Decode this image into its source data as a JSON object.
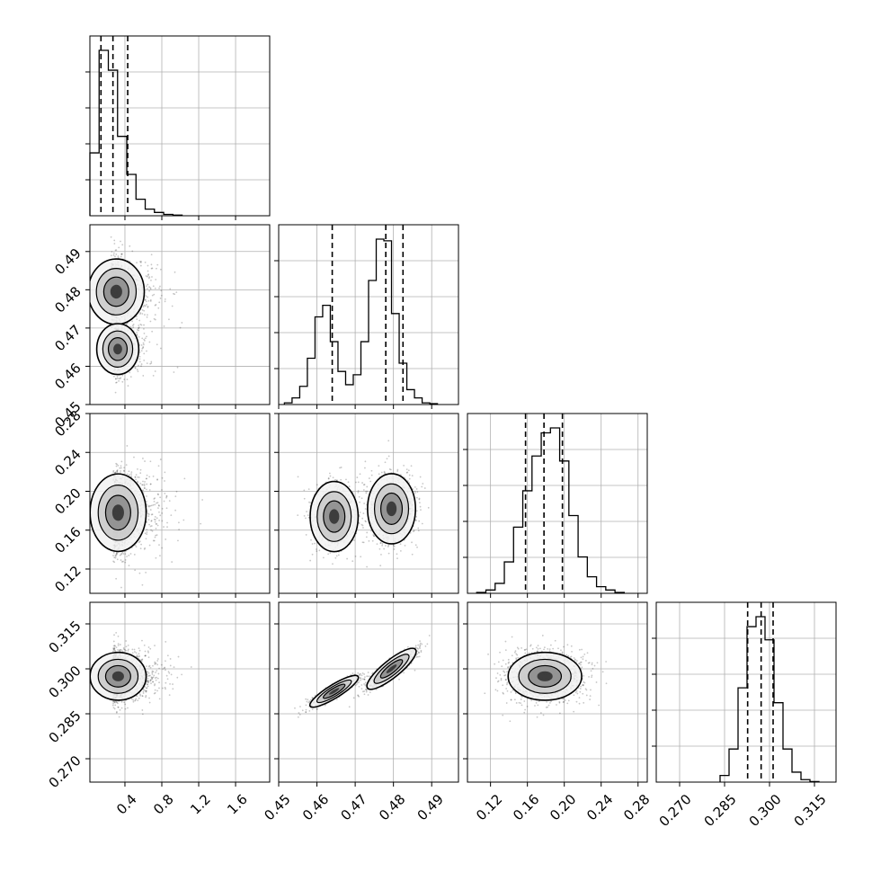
{
  "colors": {
    "ink": "#000000",
    "grid": "#b0b0b0",
    "background": "#ffffff"
  },
  "chart_data": {
    "type": "corner",
    "parameters": [
      "",
      "",
      "",
      ""
    ],
    "grid": true,
    "axes": {
      "x": [
        {
          "range": [
            0.02,
            1.97
          ],
          "ticks": [
            0.4,
            0.8,
            1.2,
            1.6
          ],
          "tick_labels": [
            "0.4",
            "0.8",
            "1.2",
            "1.6"
          ]
        },
        {
          "range": [
            0.45,
            0.497
          ],
          "ticks": [
            0.45,
            0.46,
            0.47,
            0.48,
            0.49
          ],
          "tick_labels": [
            "0.45",
            "0.46",
            "0.47",
            "0.48",
            "0.49"
          ]
        },
        {
          "range": [
            0.095,
            0.29
          ],
          "ticks": [
            0.12,
            0.16,
            0.2,
            0.24,
            0.28
          ],
          "tick_labels": [
            "0.12",
            "0.16",
            "0.20",
            "0.24",
            "0.28"
          ]
        },
        {
          "range": [
            0.2622,
            0.3222
          ],
          "ticks": [
            0.27,
            0.285,
            0.3,
            0.315
          ],
          "tick_labels": [
            "0.270",
            "0.285",
            "0.300",
            "0.315"
          ]
        }
      ],
      "y": [
        null,
        {
          "range": [
            0.45,
            0.497
          ],
          "ticks": [
            0.45,
            0.46,
            0.47,
            0.48,
            0.49
          ],
          "tick_labels": [
            "0.45",
            "0.46",
            "0.47",
            "0.48",
            "0.49"
          ]
        },
        {
          "range": [
            0.095,
            0.28
          ],
          "ticks": [
            0.12,
            0.16,
            0.2,
            0.24,
            0.28
          ],
          "tick_labels": [
            "0.12",
            "0.16",
            "0.20",
            "0.24",
            "0.28"
          ]
        },
        {
          "range": [
            0.2622,
            0.3222
          ],
          "ticks": [
            0.27,
            0.285,
            0.3,
            0.315
          ],
          "tick_labels": [
            "0.270",
            "0.285",
            "0.300",
            "0.315"
          ]
        }
      ]
    },
    "histograms": [
      {
        "bin_edges": [
          0.02,
          0.12,
          0.22,
          0.32,
          0.42,
          0.52,
          0.62,
          0.72,
          0.82,
          0.92,
          1.02
        ],
        "counts": [
          0.38,
          1.0,
          0.88,
          0.48,
          0.25,
          0.1,
          0.04,
          0.02,
          0.008,
          0.004
        ],
        "quantiles": [
          0.14,
          0.27,
          0.43
        ]
      },
      {
        "bin_edges": [
          0.4515,
          0.4535,
          0.4555,
          0.4575,
          0.4595,
          0.4615,
          0.4635,
          0.4655,
          0.4675,
          0.4695,
          0.4715,
          0.4735,
          0.4755,
          0.4775,
          0.4795,
          0.4815,
          0.4835,
          0.4855,
          0.4875,
          0.4895,
          0.4915
        ],
        "counts": [
          0.01,
          0.04,
          0.11,
          0.28,
          0.53,
          0.6,
          0.38,
          0.2,
          0.12,
          0.18,
          0.38,
          0.75,
          1.0,
          0.99,
          0.55,
          0.25,
          0.09,
          0.04,
          0.01,
          0.005
        ],
        "quantiles": [
          0.464,
          0.478,
          0.4825
        ]
      },
      {
        "bin_edges": [
          0.105,
          0.115,
          0.125,
          0.135,
          0.145,
          0.155,
          0.165,
          0.175,
          0.185,
          0.195,
          0.205,
          0.215,
          0.225,
          0.235,
          0.245,
          0.255,
          0.265
        ],
        "counts": [
          0.005,
          0.02,
          0.06,
          0.19,
          0.4,
          0.62,
          0.83,
          0.97,
          1.0,
          0.8,
          0.47,
          0.22,
          0.1,
          0.04,
          0.02,
          0.005
        ],
        "quantiles": [
          0.158,
          0.178,
          0.198
        ]
      },
      {
        "bin_edges": [
          0.2835,
          0.2865,
          0.2895,
          0.2925,
          0.2955,
          0.2985,
          0.3015,
          0.3045,
          0.3075,
          0.3105,
          0.3135,
          0.3165
        ],
        "counts": [
          0.04,
          0.2,
          0.57,
          0.94,
          1.0,
          0.86,
          0.48,
          0.2,
          0.06,
          0.015,
          0.003
        ],
        "quantiles": [
          0.2927,
          0.2972,
          0.3012
        ]
      }
    ],
    "pair_panels": [
      {
        "x_param": 0,
        "y_param": 1,
        "density_peaks": [
          {
            "x": 0.25,
            "y": 0.4795,
            "sx": 0.16,
            "sy": 0.0045,
            "w": 0.6
          },
          {
            "x": 0.28,
            "y": 0.4645,
            "sx": 0.12,
            "sy": 0.0035,
            "w": 0.4
          }
        ]
      },
      {
        "x_param": 0,
        "y_param": 2,
        "density_peaks": [
          {
            "x": 0.27,
            "y": 0.178,
            "sx": 0.16,
            "sy": 0.021,
            "w": 1.0
          }
        ]
      },
      {
        "x_param": 0,
        "y_param": 3,
        "density_peaks": [
          {
            "x": 0.27,
            "y": 0.2975,
            "sx": 0.16,
            "sy": 0.0042,
            "w": 1.0
          }
        ]
      },
      {
        "x_param": 1,
        "y_param": 2,
        "density_peaks": [
          {
            "x": 0.4645,
            "y": 0.174,
            "sx": 0.0033,
            "sy": 0.019,
            "w": 0.4
          },
          {
            "x": 0.4795,
            "y": 0.182,
            "sx": 0.0033,
            "sy": 0.019,
            "w": 0.6
          }
        ]
      },
      {
        "x_param": 1,
        "y_param": 3,
        "density_peaks": [
          {
            "x": 0.4645,
            "y": 0.2925,
            "sx": 0.0033,
            "sy": 0.0026,
            "w": 0.4,
            "corr": 0.9
          },
          {
            "x": 0.4795,
            "y": 0.3,
            "sx": 0.0033,
            "sy": 0.0034,
            "w": 0.6,
            "corr": 0.9
          }
        ]
      },
      {
        "x_param": 2,
        "y_param": 3,
        "density_peaks": [
          {
            "x": 0.179,
            "y": 0.2975,
            "sx": 0.021,
            "sy": 0.0042,
            "w": 1.0
          }
        ]
      }
    ]
  }
}
